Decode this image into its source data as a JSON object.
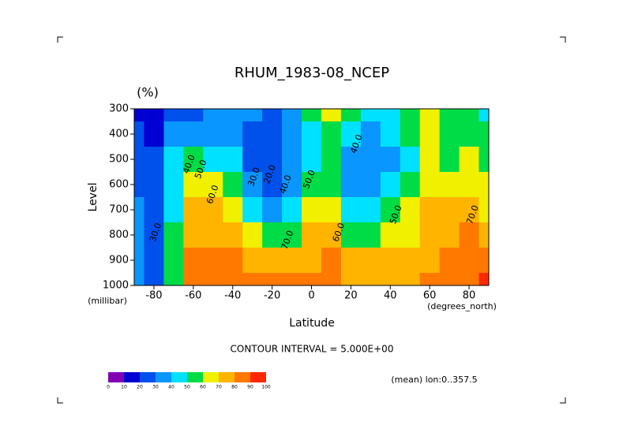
{
  "chart_data": {
    "type": "contour",
    "title": "RHUM_1983-08_NCEP",
    "unit_label": "(%)",
    "y_label": "Level",
    "y_unit_label": "(millibar)",
    "x_label": "Latitude",
    "x_unit_label": "(degrees_north)",
    "contour_interval_text": "CONTOUR INTERVAL = 5.000E+00",
    "footnote": "(mean) lon:0..357.5",
    "x": [
      -90,
      -80,
      -70,
      -60,
      -50,
      -40,
      -30,
      -20,
      -10,
      0,
      10,
      20,
      30,
      40,
      50,
      60,
      70,
      80,
      90
    ],
    "y": [
      300,
      400,
      500,
      600,
      700,
      800,
      900,
      1000
    ],
    "z": [
      [
        10,
        10,
        20,
        25,
        30,
        35,
        30,
        25,
        30,
        55,
        65,
        50,
        45,
        45,
        55,
        60,
        55,
        50,
        45
      ],
      [
        20,
        15,
        30,
        35,
        35,
        35,
        25,
        20,
        30,
        45,
        55,
        40,
        35,
        40,
        50,
        60,
        55,
        55,
        50
      ],
      [
        25,
        20,
        40,
        50,
        45,
        45,
        25,
        20,
        30,
        45,
        50,
        35,
        35,
        35,
        45,
        60,
        55,
        60,
        55
      ],
      [
        25,
        20,
        45,
        60,
        65,
        55,
        35,
        25,
        35,
        50,
        55,
        35,
        35,
        40,
        50,
        65,
        60,
        65,
        60
      ],
      [
        30,
        25,
        45,
        70,
        70,
        65,
        45,
        35,
        45,
        60,
        65,
        45,
        40,
        50,
        60,
        70,
        70,
        70,
        65
      ],
      [
        30,
        20,
        50,
        75,
        75,
        75,
        60,
        55,
        55,
        70,
        75,
        55,
        55,
        60,
        65,
        75,
        75,
        80,
        75
      ],
      [
        30,
        20,
        55,
        80,
        85,
        80,
        75,
        70,
        70,
        75,
        80,
        70,
        70,
        70,
        75,
        75,
        80,
        85,
        85
      ],
      [
        30,
        25,
        55,
        85,
        80,
        80,
        80,
        80,
        80,
        85,
        80,
        75,
        75,
        75,
        75,
        80,
        80,
        85,
        90
      ]
    ],
    "xlim": [
      -90,
      90
    ],
    "ylim": [
      300,
      1000
    ],
    "xticks": [
      -80,
      -60,
      -40,
      -20,
      0,
      20,
      40,
      60,
      80
    ],
    "yticks": [
      300,
      400,
      500,
      600,
      700,
      800,
      900,
      1000
    ],
    "colorbar": {
      "levels": [
        0,
        10,
        20,
        30,
        40,
        50,
        60,
        70,
        80,
        90,
        100
      ],
      "colors": [
        "#8200b4",
        "#0000d2",
        "#0050eb",
        "#0a96ff",
        "#00e1ff",
        "#00dc46",
        "#f0f000",
        "#ffb400",
        "#ff7800",
        "#ff2800"
      ]
    },
    "contour_labels": [
      {
        "text": "30.0",
        "lat": -79,
        "level": 790
      },
      {
        "text": "40.0",
        "lat": -62,
        "level": 520
      },
      {
        "text": "50.0",
        "lat": -56,
        "level": 540
      },
      {
        "text": "60.0",
        "lat": -50,
        "level": 640
      },
      {
        "text": "30.0",
        "lat": -29,
        "level": 570
      },
      {
        "text": "20.0",
        "lat": -21,
        "level": 560
      },
      {
        "text": "40.0",
        "lat": -13,
        "level": 600
      },
      {
        "text": "50.0",
        "lat": -1,
        "level": 580
      },
      {
        "text": "70.0",
        "lat": -12,
        "level": 820
      },
      {
        "text": "60.0",
        "lat": 14,
        "level": 790
      },
      {
        "text": "40.0",
        "lat": 23,
        "level": 440
      },
      {
        "text": "50.0",
        "lat": 43,
        "level": 720
      },
      {
        "text": "70.0",
        "lat": 82,
        "level": 720
      }
    ]
  }
}
